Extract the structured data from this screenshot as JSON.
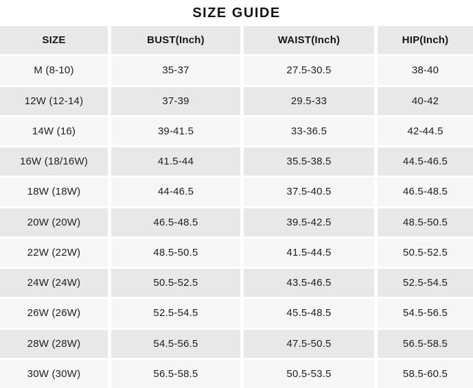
{
  "title": "SIZE GUIDE",
  "table": {
    "headers": [
      "SIZE",
      "BUST(Inch)",
      "WAIST(Inch)",
      "HIP(Inch)"
    ],
    "rows": [
      [
        "M (8-10)",
        "35-37",
        "27.5-30.5",
        "38-40"
      ],
      [
        "12W (12-14)",
        "37-39",
        "29.5-33",
        "40-42"
      ],
      [
        "14W (16)",
        "39-41.5",
        "33-36.5",
        "42-44.5"
      ],
      [
        "16W (18/16W)",
        "41.5-44",
        "35.5-38.5",
        "44.5-46.5"
      ],
      [
        "18W (18W)",
        "44-46.5",
        "37.5-40.5",
        "46.5-48.5"
      ],
      [
        "20W (20W)",
        "46.5-48.5",
        "39.5-42.5",
        "48.5-50.5"
      ],
      [
        "22W (22W)",
        "48.5-50.5",
        "41.5-44.5",
        "50.5-52.5"
      ],
      [
        "24W (24W)",
        "50.5-52.5",
        "43.5-46.5",
        "52.5-54.5"
      ],
      [
        "26W (26W)",
        "52.5-54.5",
        "45.5-48.5",
        "54.5-56.5"
      ],
      [
        "28W (28W)",
        "54.5-56.5",
        "47.5-50.5",
        "56.5-58.5"
      ],
      [
        "30W (30W)",
        "56.5-58.5",
        "50.5-53.5",
        "58.5-60.5"
      ]
    ]
  },
  "colors": {
    "header_bg": "#e8e8e8",
    "row_even_bg": "#f6f6f6",
    "row_odd_bg": "#e8e8e8",
    "separator": "#ffffff",
    "text": "#1f1f1f"
  }
}
